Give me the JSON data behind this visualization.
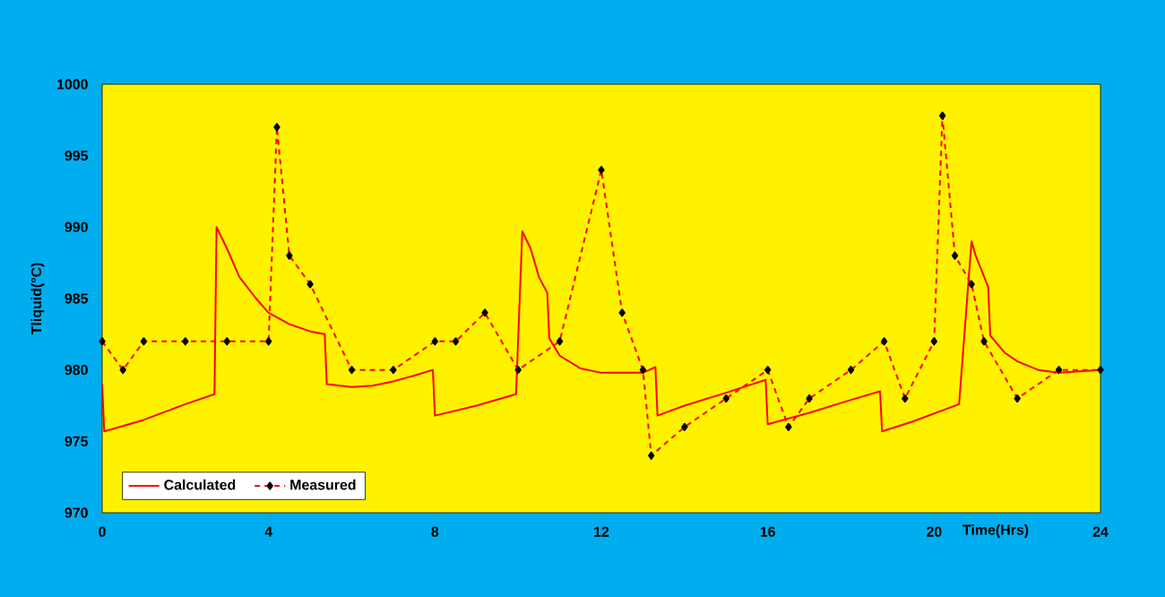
{
  "chart_data": {
    "type": "line",
    "xlabel": "Time(Hrs)",
    "ylabel": "Tliquid(°C)",
    "xlim": [
      0,
      24
    ],
    "ylim": [
      970,
      1000
    ],
    "xticks": [
      0,
      4,
      8,
      12,
      16,
      20,
      24
    ],
    "yticks": [
      970,
      975,
      980,
      985,
      990,
      995,
      1000
    ],
    "grid": false,
    "legend": "bottom left",
    "series": [
      {
        "name": "Calculated",
        "color": "#ff0000",
        "line_style": "solid",
        "marker": "none",
        "x": [
          0,
          0.05,
          1,
          2,
          2.7,
          2.75,
          3.0,
          3.3,
          3.7,
          4.0,
          4.5,
          5.0,
          5.35,
          5.4,
          6.0,
          6.5,
          7.0,
          7.5,
          7.95,
          8.0,
          9.0,
          9.95,
          10.1,
          10.3,
          10.5,
          10.7,
          10.75,
          11.0,
          11.5,
          12.0,
          13.0,
          13.3,
          13.35,
          14.0,
          15.0,
          15.95,
          16.0,
          17.0,
          18.0,
          18.7,
          18.75,
          19.5,
          20.6,
          20.9,
          21.0,
          21.3,
          21.35,
          21.7,
          22.0,
          22.5,
          23.0,
          24.0
        ],
        "values": [
          979,
          975.7,
          976.5,
          977.6,
          978.3,
          990,
          988.5,
          986.5,
          985,
          984,
          983.2,
          982.7,
          982.5,
          979,
          978.8,
          978.9,
          979.2,
          979.6,
          980,
          976.8,
          977.5,
          978.3,
          989.7,
          988.5,
          986.5,
          985.4,
          982.2,
          981,
          980.1,
          979.8,
          979.8,
          980.2,
          976.8,
          977.5,
          978.4,
          979.3,
          976.2,
          977,
          977.9,
          978.5,
          975.7,
          976.4,
          977.6,
          989,
          988,
          985.8,
          982.4,
          981.2,
          980.6,
          980,
          979.8,
          980
        ]
      },
      {
        "name": "Measured",
        "color": "#ff0000",
        "line_style": "dashed",
        "marker": "diamond",
        "x": [
          0,
          0.5,
          1,
          2,
          3,
          4,
          4.2,
          4.5,
          5,
          6,
          7,
          8,
          8.5,
          9.2,
          10,
          11,
          12,
          12.5,
          13,
          13.2,
          14,
          15,
          16,
          16.5,
          17,
          18,
          18.8,
          19.3,
          20,
          20.2,
          20.5,
          20.9,
          21.2,
          22,
          23,
          24
        ],
        "values": [
          982,
          980,
          982,
          982,
          982,
          982,
          997,
          988,
          986,
          980,
          980,
          982,
          982,
          984,
          980,
          982,
          994,
          984,
          980,
          974,
          976,
          978,
          980,
          976,
          978,
          980,
          982,
          978,
          982,
          997.8,
          988,
          986,
          982,
          978,
          980,
          980
        ]
      }
    ]
  }
}
